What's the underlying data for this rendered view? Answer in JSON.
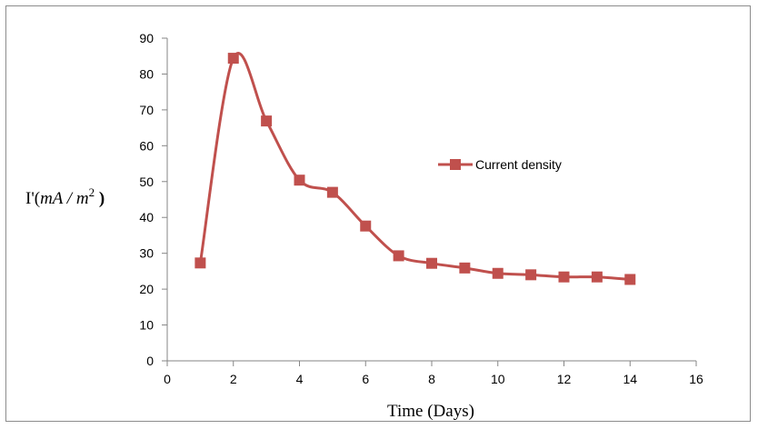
{
  "chart_data": {
    "type": "line",
    "title": "",
    "xlabel": "Time (Days)",
    "ylabel": {
      "prefix": "I'(",
      "unit_main": "mA / m",
      "unit_sup": "2",
      "suffix": " )"
    },
    "xlim": [
      0,
      16
    ],
    "ylim": [
      0,
      90
    ],
    "xticks": [
      0,
      2,
      4,
      6,
      8,
      10,
      12,
      14,
      16
    ],
    "yticks": [
      0,
      10,
      20,
      30,
      40,
      50,
      60,
      70,
      80,
      90
    ],
    "grid": false,
    "smooth": true,
    "legend_position": "right-center",
    "series": [
      {
        "name": "Current density",
        "color": "#c0504d",
        "marker": "square",
        "x": [
          1,
          2,
          3,
          4,
          5,
          6,
          7,
          8,
          9,
          10,
          11,
          12,
          13,
          14
        ],
        "y": [
          27.3,
          84.4,
          66.9,
          50.4,
          47.0,
          37.6,
          29.3,
          27.2,
          25.9,
          24.4,
          24.0,
          23.4,
          23.4,
          22.7
        ]
      }
    ]
  }
}
